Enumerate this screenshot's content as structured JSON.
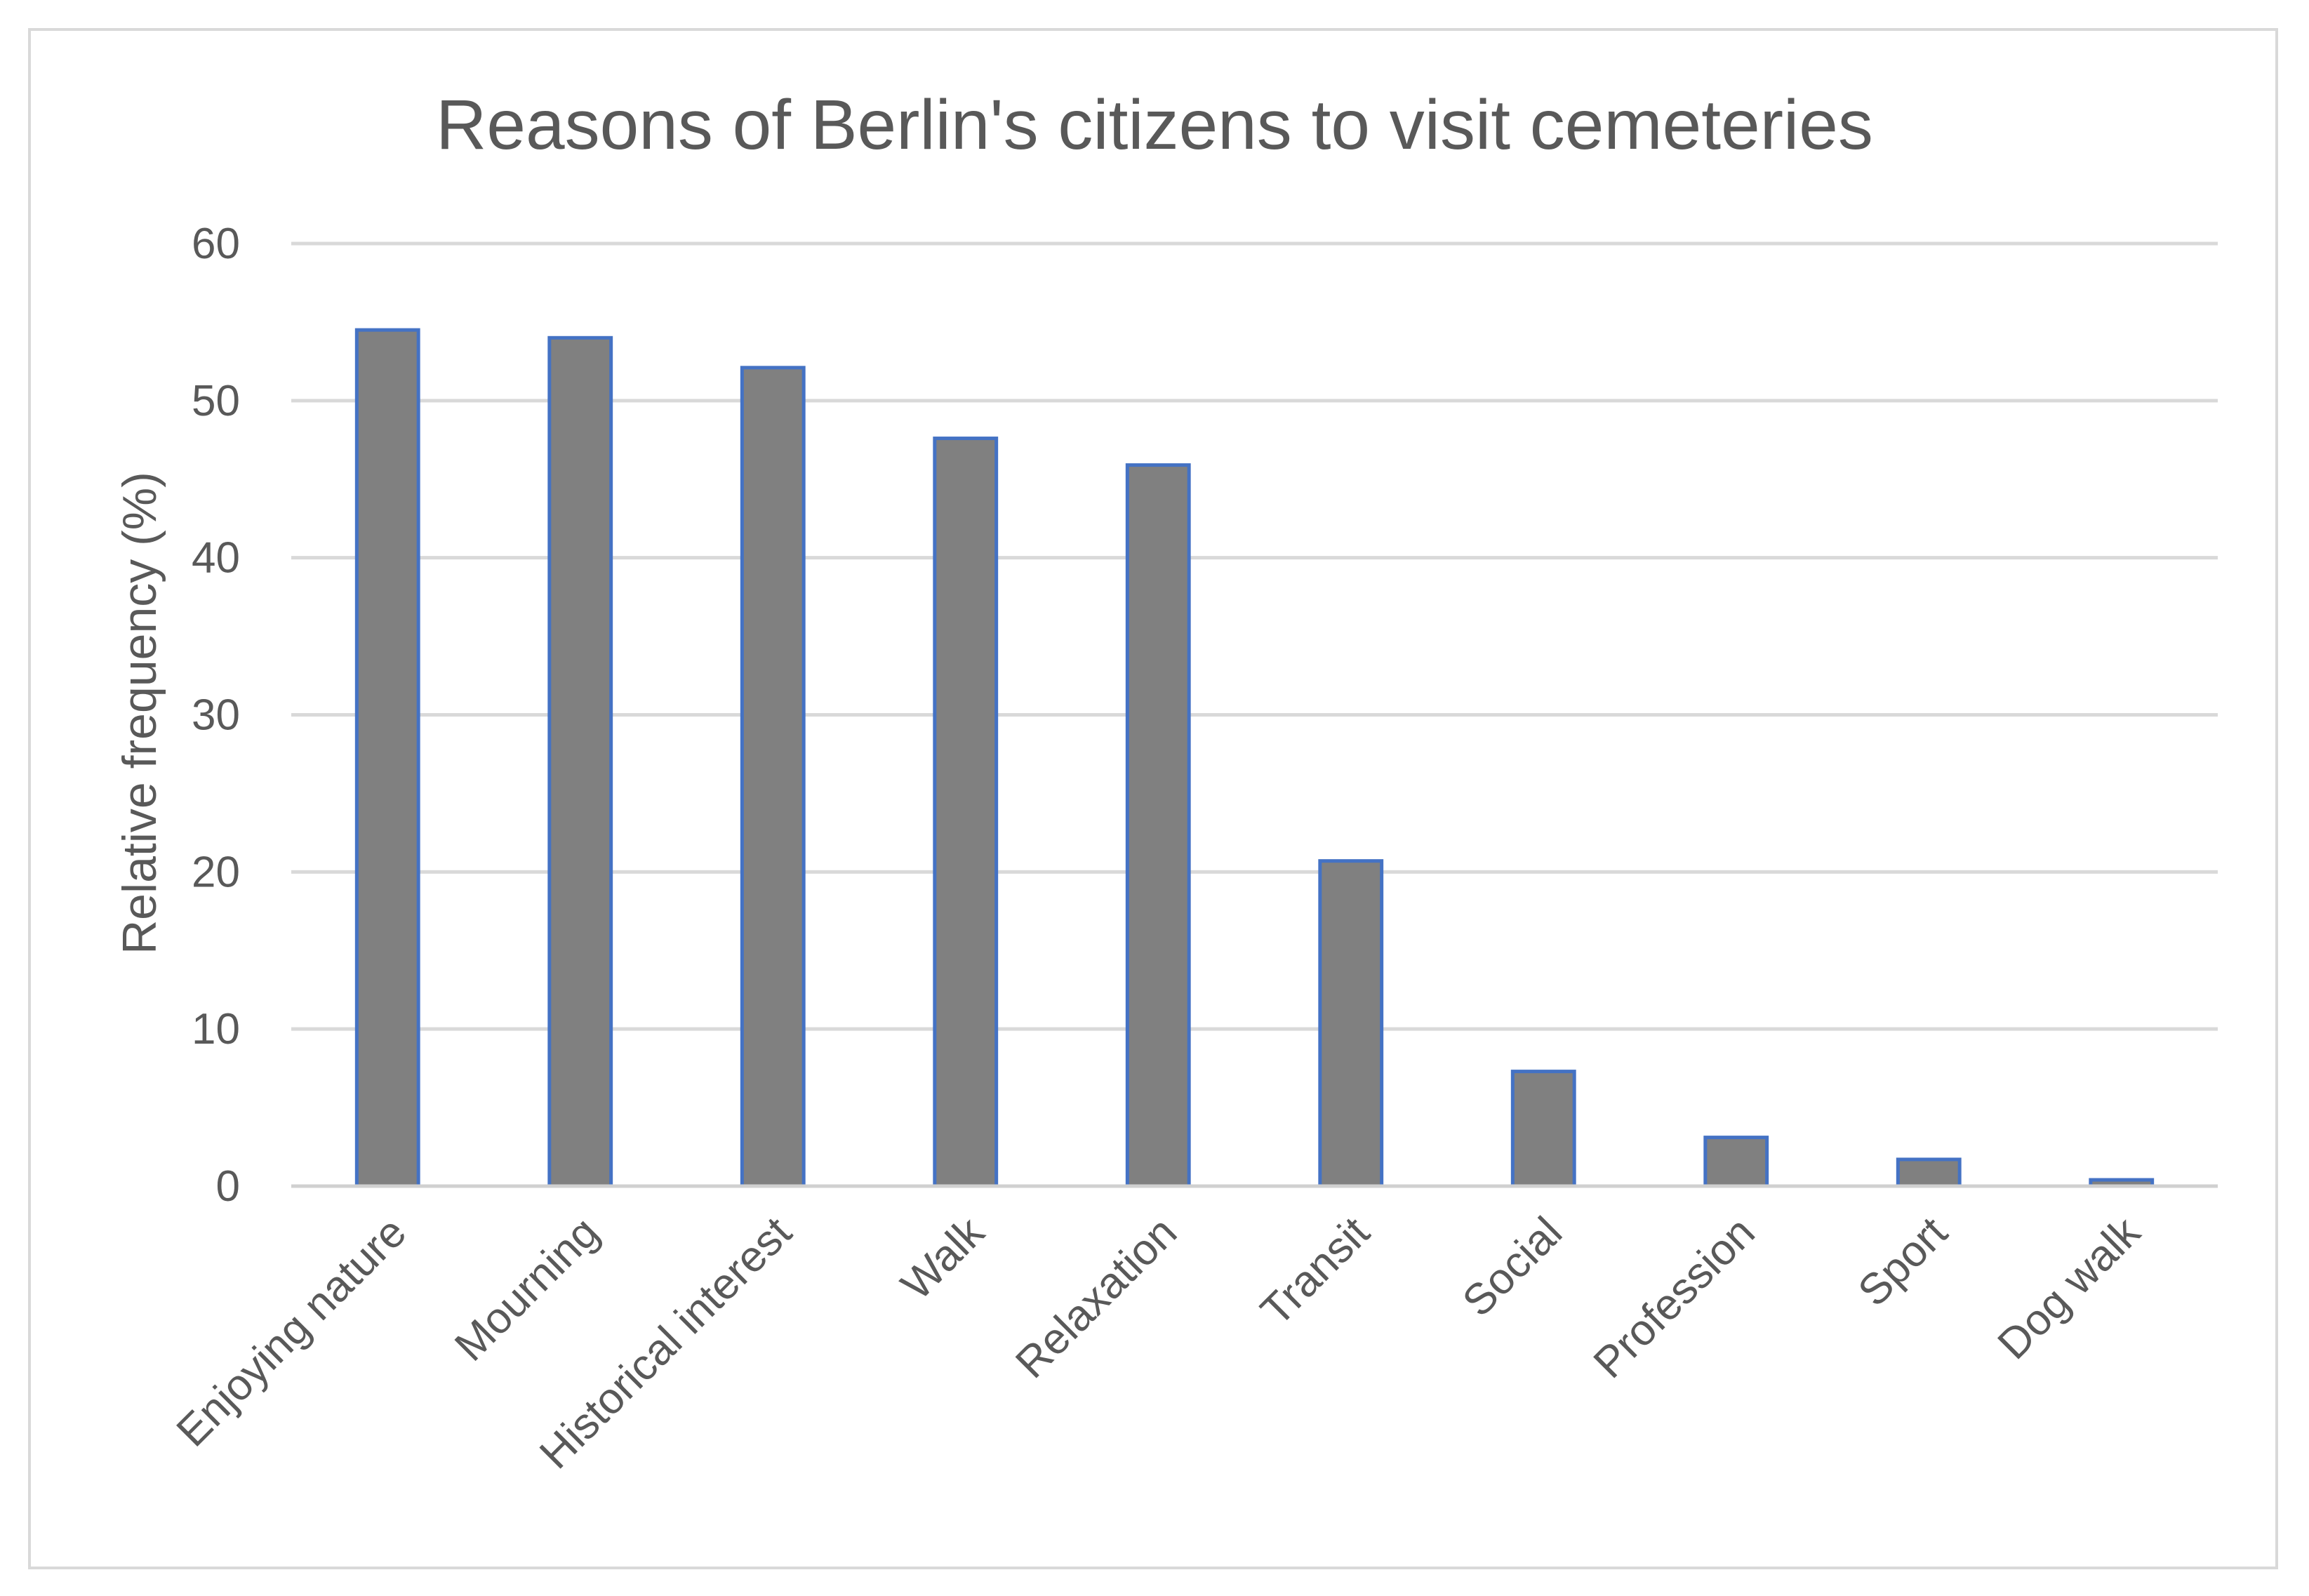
{
  "chart_data": {
    "type": "bar",
    "title": "Reasons of Berlin's citizens to visit cemeteries",
    "xlabel": "",
    "ylabel": "Relative frequency (%)",
    "ylim": [
      0,
      60
    ],
    "yticks": [
      "0",
      "10",
      "20",
      "30",
      "40",
      "50",
      "60"
    ],
    "grid": true,
    "legend": "none",
    "categories": [
      "Enjoying nature",
      "Mourning",
      "Historical interest",
      "Walk",
      "Relaxation",
      "Transit",
      "Social",
      "Profession",
      "Sport",
      "Dog walk"
    ],
    "values": [
      54.5,
      54.0,
      52.1,
      47.6,
      45.9,
      20.7,
      7.3,
      3.1,
      1.7,
      0.4
    ],
    "colors": {
      "bar_fill": "#808080",
      "bar_edge": "#4472c4",
      "text": "#595959",
      "grid": "#d9d9d9"
    }
  }
}
